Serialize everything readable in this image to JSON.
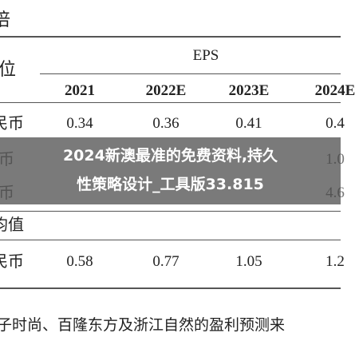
{
  "header": {
    "corner": "倍",
    "unit": "位",
    "group": "EPS"
  },
  "table": {
    "columns": [
      "2021",
      "2022E",
      "2023E",
      "2024E"
    ],
    "rows": [
      {
        "label": "民币",
        "cells": [
          "0.34",
          "0.36",
          "0.41",
          "0.4"
        ]
      },
      {
        "label": "币",
        "cells": [
          "",
          "",
          "",
          "1.0"
        ]
      },
      {
        "label": "币",
        "cells": [
          "",
          "",
          "",
          "4.6"
        ]
      },
      {
        "label": "均值",
        "cells": []
      },
      {
        "label": "民币",
        "cells": [
          "0.58",
          "0.77",
          "1.05",
          "1.2"
        ]
      }
    ]
  },
  "footnote": "子时尚、百隆东方及浙江自然的盈利预测来",
  "banner": {
    "line1": "2024新澳最准的免费资料,持久",
    "line2": "性策略设计_工具版33.815"
  }
}
